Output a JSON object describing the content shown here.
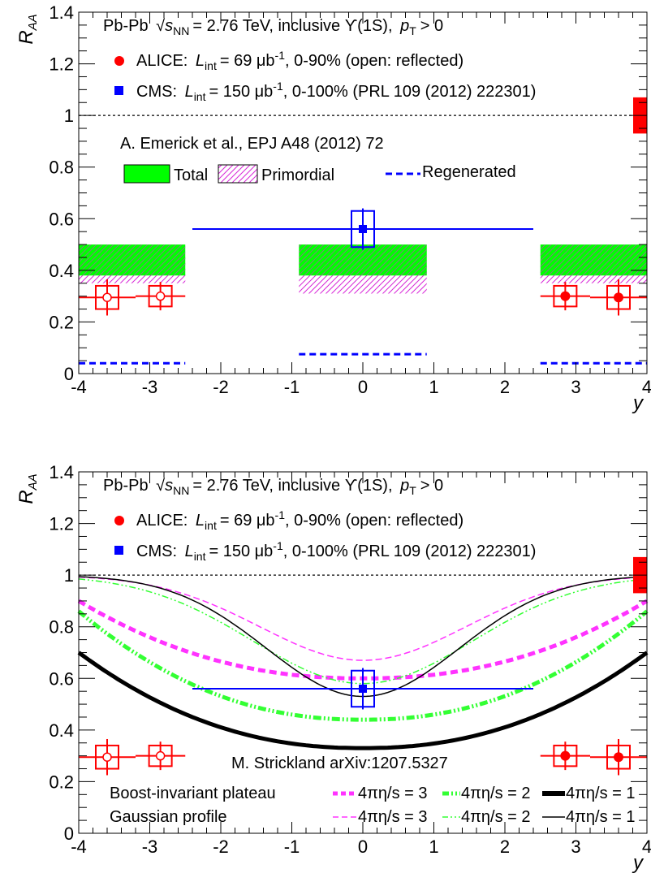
{
  "colors": {
    "alice": "#ff0000",
    "cms": "#0000ff",
    "total": "#00ff00",
    "primordial": "#d726d7",
    "regen": "#0000ff",
    "boost": "#ff33ff",
    "gauss": "#ff33ff",
    "green": "#33ff33",
    "black": "#000000"
  },
  "chart_data": [
    {
      "type": "scatter",
      "title": "",
      "xlabel": "y",
      "ylabel": "R_AA",
      "xlim": [
        -4,
        4
      ],
      "ylim": [
        0,
        1.4
      ],
      "x_ticks": [
        "-4",
        "-3",
        "-2",
        "-1",
        "0",
        "1",
        "2",
        "3",
        "4"
      ],
      "y_ticks": [
        "0",
        "0.2",
        "0.4",
        "0.6",
        "0.8",
        "1",
        "1.2",
        "1.4"
      ],
      "reference_line": 1,
      "header": {
        "system": "Pb-Pb",
        "sqrt": "s",
        "sqrt_sub": "NN",
        "energy": "= 2.76 TeV, inclusive ϒ(1S),",
        "pt": "p",
        "pt_sub": "T",
        "pt_cut": "> 0"
      },
      "legend": {
        "alice_prefix": "ALICE:",
        "alice_L": "L",
        "alice_L_sub": "int",
        "alice_value": "= 69 μb",
        "alice_exp": "-1",
        "alice_suffix": ", 0-90% (open: reflected)",
        "cms_prefix": "CMS:",
        "cms_L": "L",
        "cms_L_sub": "int",
        "cms_value": "= 150 μb",
        "cms_exp": "-1",
        "cms_suffix": ", 0-100% (PRL 109 (2012) 222301)"
      },
      "series": [
        {
          "name": "ALICE",
          "points": [
            {
              "x": 2.85,
              "y": 0.3,
              "xerr": 0.35,
              "stat": 0.055,
              "syst": 0.04,
              "open": false
            },
            {
              "x": 3.6,
              "y": 0.295,
              "xerr": 0.4,
              "stat": 0.07,
              "syst": 0.045,
              "open": false
            },
            {
              "x": -2.85,
              "y": 0.3,
              "xerr": 0.35,
              "stat": 0.055,
              "syst": 0.04,
              "open": true
            },
            {
              "x": -3.6,
              "y": 0.295,
              "xerr": 0.4,
              "stat": 0.07,
              "syst": 0.045,
              "open": true
            }
          ]
        },
        {
          "name": "CMS",
          "points": [
            {
              "x": 0,
              "y": 0.56,
              "xerr": 2.4,
              "stat": 0.08,
              "syst": 0.07,
              "open": false
            }
          ]
        }
      ],
      "model": {
        "label": "A. Emerick et al., EPJ A48 (2012) 72",
        "legend_total": "Total",
        "legend_primordial": "Primordial",
        "legend_regenerated": "Regenerated",
        "bands": [
          {
            "x0": -4,
            "x1": -2.5,
            "total": [
              0.38,
              0.5
            ],
            "primordial": [
              0.35,
              0.46
            ],
            "regen": 0.04
          },
          {
            "x0": -0.9,
            "x1": 0.9,
            "total": [
              0.38,
              0.5
            ],
            "primordial": [
              0.31,
              0.42
            ],
            "regen": 0.075
          },
          {
            "x0": 2.5,
            "x1": 4,
            "total": [
              0.38,
              0.5
            ],
            "primordial": [
              0.35,
              0.46
            ],
            "regen": 0.04
          }
        ]
      },
      "global_uncertainty": {
        "y": 1,
        "err": 0.07
      }
    },
    {
      "type": "line",
      "title": "",
      "xlabel": "y",
      "ylabel": "R_AA",
      "xlim": [
        -4,
        4
      ],
      "ylim": [
        0,
        1.4
      ],
      "x_ticks": [
        "-4",
        "-3",
        "-2",
        "-1",
        "0",
        "1",
        "2",
        "3",
        "4"
      ],
      "y_ticks": [
        "0",
        "0.2",
        "0.4",
        "0.6",
        "0.8",
        "1",
        "1.2",
        "1.4"
      ],
      "reference_line": 1,
      "model_label": "M. Strickland arXiv:1207.5327",
      "legend_row1": "Boost-invariant plateau",
      "legend_row2": "Gaussian profile",
      "curves": [
        {
          "name": "4πη/s = 3",
          "profile": "plateau",
          "center": 0.6,
          "edge": 0.9,
          "color": "#ff33ff"
        },
        {
          "name": "4πη/s = 2",
          "profile": "plateau",
          "center": 0.44,
          "edge": 0.86,
          "color": "#33ff33"
        },
        {
          "name": "4πη/s = 1",
          "profile": "plateau",
          "center": 0.33,
          "edge": 0.7,
          "color": "#000000"
        },
        {
          "name": "4πη/s = 3",
          "profile": "gaussian",
          "center": 0.67,
          "edge": 1.0,
          "color": "#ff33ff"
        },
        {
          "name": "4πη/s = 2",
          "profile": "gaussian",
          "center": 0.58,
          "edge": 1.0,
          "color": "#33ff33"
        },
        {
          "name": "4πη/s = 1",
          "profile": "gaussian",
          "center": 0.53,
          "edge": 1.0,
          "color": "#000000"
        }
      ],
      "series": [
        {
          "name": "ALICE",
          "points": [
            {
              "x": 2.85,
              "y": 0.3,
              "xerr": 0.35,
              "stat": 0.055,
              "syst": 0.04,
              "open": false
            },
            {
              "x": 3.6,
              "y": 0.295,
              "xerr": 0.4,
              "stat": 0.07,
              "syst": 0.045,
              "open": false
            },
            {
              "x": -2.85,
              "y": 0.3,
              "xerr": 0.35,
              "stat": 0.055,
              "syst": 0.04,
              "open": true
            },
            {
              "x": -3.6,
              "y": 0.295,
              "xerr": 0.4,
              "stat": 0.07,
              "syst": 0.045,
              "open": true
            }
          ]
        },
        {
          "name": "CMS",
          "points": [
            {
              "x": 0,
              "y": 0.56,
              "xerr": 2.4,
              "stat": 0.08,
              "syst": 0.07,
              "open": false
            }
          ]
        }
      ],
      "global_uncertainty": {
        "y": 1,
        "err": 0.07
      }
    }
  ]
}
